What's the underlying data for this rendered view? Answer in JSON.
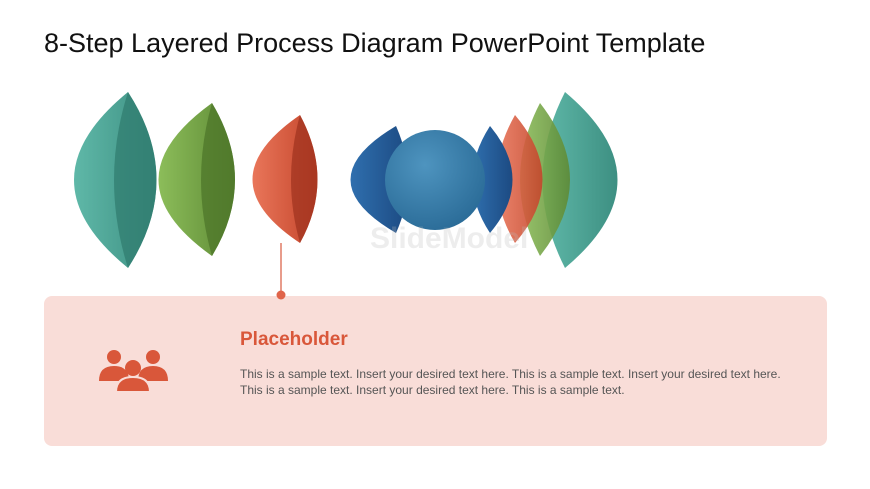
{
  "header": {
    "title": "8-Step Layered Process Diagram PowerPoint Template"
  },
  "watermark": "SlideModel",
  "card": {
    "heading": "Placeholder",
    "body": "This is a sample text. Insert your desired text here. This is a sample text. Insert your desired text here. This is a sample text. Insert your desired text here. This is a sample text."
  }
}
